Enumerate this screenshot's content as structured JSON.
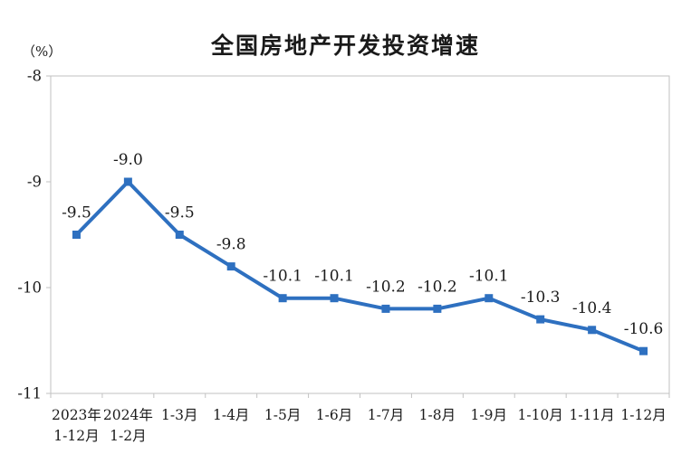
{
  "page": {
    "background": "#ffffff"
  },
  "chart_data": {
    "type": "line",
    "title": "全国房地产开发投资增速",
    "unit_label": "（%）",
    "categories": [
      [
        "2023年",
        "1-12月"
      ],
      [
        "2024年",
        "1-2月"
      ],
      [
        "1-3月"
      ],
      [
        "1-4月"
      ],
      [
        "1-5月"
      ],
      [
        "1-6月"
      ],
      [
        "1-7月"
      ],
      [
        "1-8月"
      ],
      [
        "1-9月"
      ],
      [
        "1-10月"
      ],
      [
        "1-11月"
      ],
      [
        "1-12月"
      ]
    ],
    "values": [
      -9.5,
      -9.0,
      -9.5,
      -9.8,
      -10.1,
      -10.1,
      -10.2,
      -10.2,
      -10.1,
      -10.3,
      -10.4,
      -10.6
    ],
    "data_labels": [
      "-9.5",
      "-9.0",
      "-9.5",
      "-9.8",
      "-10.1",
      "-10.1",
      "-10.2",
      "-10.2",
      "-10.1",
      "-10.3",
      "-10.4",
      "-10.6"
    ],
    "y_ticks": [
      "-8",
      "-9",
      "-10",
      "-11"
    ],
    "y_tick_values": [
      -8,
      -9,
      -10,
      -11
    ],
    "ylim": [
      -11,
      -8
    ],
    "grid": false,
    "legend": "none",
    "marker": "square",
    "colors": {
      "line": "#2E70C0",
      "marker": "#2E70C0",
      "text": "#1b1b1b",
      "axis": "#c2c2c2"
    }
  }
}
